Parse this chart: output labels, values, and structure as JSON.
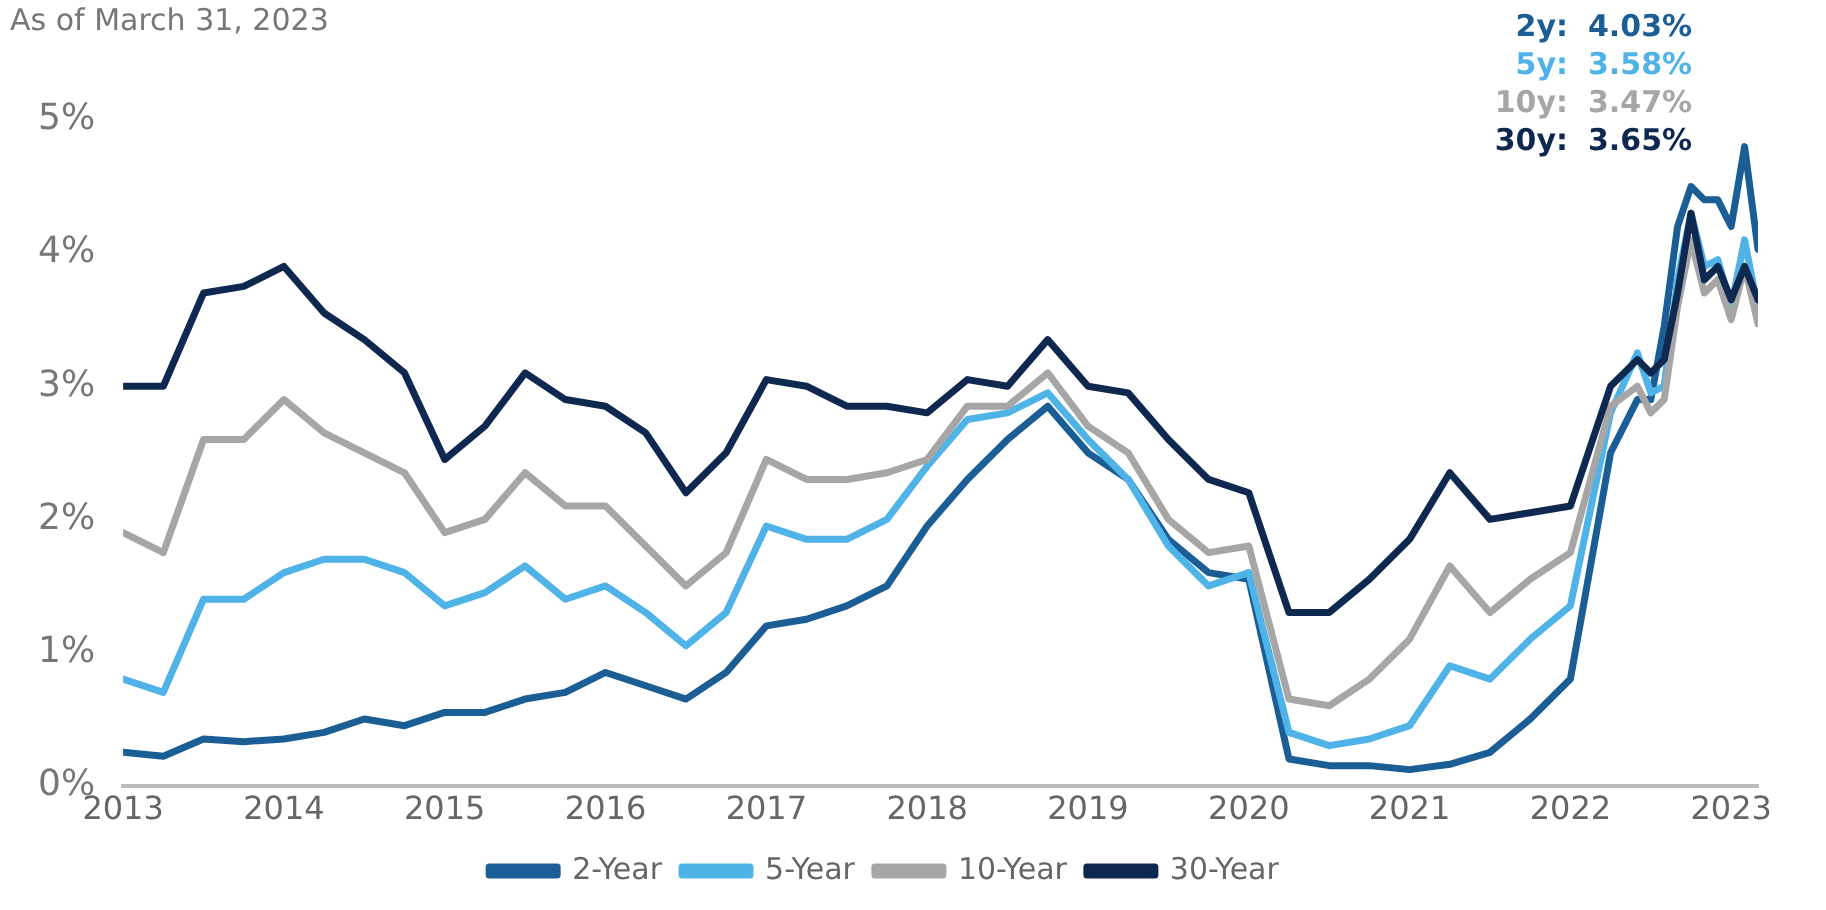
{
  "chart_data": {
    "type": "line",
    "subtitle": "As of March 31, 2023",
    "x": [
      "2013-01",
      "2013-04",
      "2013-07",
      "2013-10",
      "2014-01",
      "2014-04",
      "2014-07",
      "2014-10",
      "2015-01",
      "2015-04",
      "2015-07",
      "2015-10",
      "2016-01",
      "2016-04",
      "2016-07",
      "2016-10",
      "2017-01",
      "2017-04",
      "2017-07",
      "2017-10",
      "2018-01",
      "2018-04",
      "2018-07",
      "2018-10",
      "2019-01",
      "2019-04",
      "2019-07",
      "2019-10",
      "2020-01",
      "2020-04",
      "2020-07",
      "2020-10",
      "2021-01",
      "2021-04",
      "2021-07",
      "2021-10",
      "2022-01",
      "2022-04",
      "2022-06",
      "2022-07",
      "2022-08",
      "2022-09",
      "2022-10",
      "2022-11",
      "2022-12",
      "2023-01",
      "2023-02",
      "2023-03"
    ],
    "series": [
      {
        "name": "2-Year",
        "color": "#1b5e96",
        "values": [
          0.25,
          0.22,
          0.35,
          0.33,
          0.35,
          0.4,
          0.5,
          0.45,
          0.55,
          0.55,
          0.65,
          0.7,
          0.85,
          0.75,
          0.65,
          0.85,
          1.2,
          1.25,
          1.35,
          1.5,
          1.95,
          2.3,
          2.6,
          2.85,
          2.5,
          2.3,
          1.85,
          1.6,
          1.55,
          0.2,
          0.15,
          0.15,
          0.12,
          0.16,
          0.25,
          0.5,
          0.8,
          2.5,
          2.9,
          2.9,
          3.45,
          4.2,
          4.5,
          4.4,
          4.4,
          4.2,
          4.8,
          4.03
        ]
      },
      {
        "name": "5-Year",
        "color": "#4fb3e8",
        "values": [
          0.8,
          0.7,
          1.4,
          1.4,
          1.6,
          1.7,
          1.7,
          1.6,
          1.35,
          1.45,
          1.65,
          1.4,
          1.5,
          1.3,
          1.05,
          1.3,
          1.95,
          1.85,
          1.85,
          2.0,
          2.4,
          2.75,
          2.8,
          2.95,
          2.6,
          2.3,
          1.8,
          1.5,
          1.6,
          0.4,
          0.3,
          0.35,
          0.45,
          0.9,
          0.8,
          1.1,
          1.35,
          2.8,
          3.25,
          2.95,
          3.0,
          3.8,
          4.3,
          3.9,
          3.95,
          3.6,
          4.1,
          3.58
        ]
      },
      {
        "name": "10-Year",
        "color": "#a6a6a6",
        "values": [
          1.9,
          1.75,
          2.6,
          2.6,
          2.9,
          2.65,
          2.5,
          2.35,
          1.9,
          2.0,
          2.35,
          2.1,
          2.1,
          1.8,
          1.5,
          1.75,
          2.45,
          2.3,
          2.3,
          2.35,
          2.45,
          2.85,
          2.85,
          3.1,
          2.7,
          2.5,
          2.0,
          1.75,
          1.8,
          0.65,
          0.6,
          0.8,
          1.1,
          1.65,
          1.3,
          1.55,
          1.75,
          2.85,
          3.0,
          2.8,
          2.9,
          3.6,
          4.1,
          3.7,
          3.8,
          3.5,
          3.9,
          3.47
        ]
      },
      {
        "name": "30-Year",
        "color": "#0f2850",
        "values": [
          3.0,
          3.0,
          3.7,
          3.75,
          3.9,
          3.55,
          3.35,
          3.1,
          2.45,
          2.7,
          3.1,
          2.9,
          2.85,
          2.65,
          2.2,
          2.5,
          3.05,
          3.0,
          2.85,
          2.85,
          2.8,
          3.05,
          3.0,
          3.35,
          3.0,
          2.95,
          2.6,
          2.3,
          2.2,
          1.3,
          1.3,
          1.55,
          1.85,
          2.35,
          2.0,
          2.05,
          2.1,
          3.0,
          3.2,
          3.1,
          3.2,
          3.7,
          4.3,
          3.8,
          3.9,
          3.65,
          3.9,
          3.65
        ]
      }
    ],
    "annotations": [
      "2y: 4.03%",
      "5y: 3.58%",
      "10y: 3.47%",
      "30y: 3.65%"
    ],
    "xlim": [
      "2013-01",
      "2023-03"
    ],
    "xticks": [
      "2013",
      "2014",
      "2015",
      "2016",
      "2017",
      "2018",
      "2019",
      "2020",
      "2021",
      "2022",
      "2023"
    ],
    "ylim": [
      0,
      5
    ],
    "yticks": [
      {
        "value": 0,
        "label": "0%"
      },
      {
        "value": 1,
        "label": "1%"
      },
      {
        "value": 2,
        "label": "2%"
      },
      {
        "value": 3,
        "label": "3%"
      },
      {
        "value": 4,
        "label": "4%"
      },
      {
        "value": 5,
        "label": "5%"
      }
    ],
    "grid": false,
    "legend": "bottom",
    "marker": "none",
    "line_style": "solid"
  }
}
